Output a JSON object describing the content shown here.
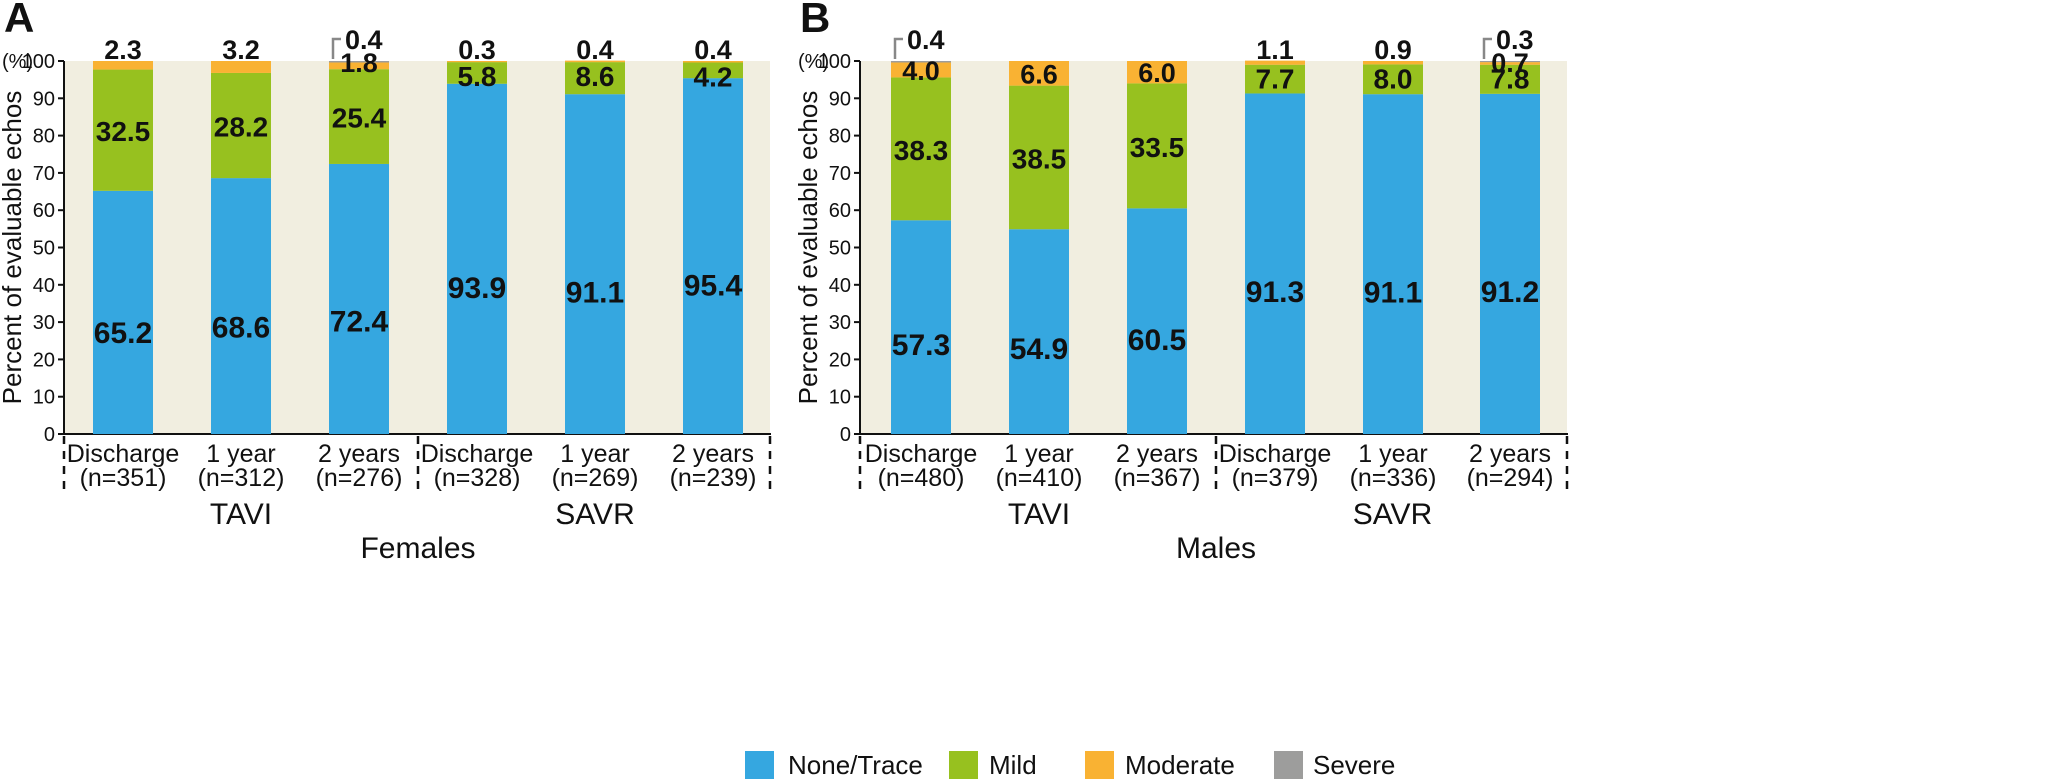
{
  "legend": [
    {
      "name": "None/Trace",
      "color": "#35a7e0"
    },
    {
      "name": "Mild",
      "color": "#97c11f"
    },
    {
      "name": "Moderate",
      "color": "#f9b233"
    },
    {
      "name": "Severe",
      "color": "#9d9d9c"
    }
  ],
  "plot_bg": "#f1eee0",
  "chart_data": [
    {
      "type": "bar",
      "stacked": true,
      "panel": "A",
      "ylabel": "Percent of evaluable echos",
      "y_unit": "(%)",
      "ylim": [
        0,
        100
      ],
      "yticks": [
        0,
        10,
        20,
        30,
        40,
        50,
        60,
        70,
        80,
        90,
        100
      ],
      "title": "Females",
      "groups": [
        {
          "name": "TAVI",
          "count": 3
        },
        {
          "name": "SAVR",
          "count": 3
        }
      ],
      "categories": [
        {
          "line1": "Discharge",
          "line2": "(n=351)"
        },
        {
          "line1": "1 year",
          "line2": "(n=312)"
        },
        {
          "line1": "2 years",
          "line2": "(n=276)"
        },
        {
          "line1": "Discharge",
          "line2": "(n=328)"
        },
        {
          "line1": "1 year",
          "line2": "(n=269)"
        },
        {
          "line1": "2 years",
          "line2": "(n=239)"
        }
      ],
      "series": [
        {
          "name": "None/Trace",
          "values": [
            65.2,
            68.6,
            72.4,
            93.9,
            91.1,
            95.4
          ],
          "labels": [
            "65.2",
            "68.6",
            "72.4",
            "93.9",
            "91.1",
            "95.4"
          ]
        },
        {
          "name": "Mild",
          "values": [
            32.5,
            28.2,
            25.4,
            5.8,
            8.6,
            4.2
          ],
          "labels": [
            "32.5",
            "28.2",
            "25.4",
            "5.8",
            "8.6",
            "4.2"
          ]
        },
        {
          "name": "Moderate",
          "values": [
            2.3,
            3.2,
            1.8,
            0.3,
            0.4,
            0.4
          ],
          "labels": [
            "2.3",
            "3.2",
            "1.8",
            "0.3",
            "0.4",
            "0.4"
          ]
        },
        {
          "name": "Severe",
          "values": [
            0,
            0,
            0.4,
            0,
            0,
            0
          ],
          "labels": [
            "",
            "",
            "0.4",
            "",
            "",
            ""
          ]
        }
      ]
    },
    {
      "type": "bar",
      "stacked": true,
      "panel": "B",
      "ylabel": "Percent of evaluable echos",
      "y_unit": "(%)",
      "ylim": [
        0,
        100
      ],
      "yticks": [
        0,
        10,
        20,
        30,
        40,
        50,
        60,
        70,
        80,
        90,
        100
      ],
      "title": "Males",
      "groups": [
        {
          "name": "TAVI",
          "count": 3
        },
        {
          "name": "SAVR",
          "count": 3
        }
      ],
      "categories": [
        {
          "line1": "Discharge",
          "line2": "(n=480)"
        },
        {
          "line1": "1 year",
          "line2": "(n=410)"
        },
        {
          "line1": "2 years",
          "line2": "(n=367)"
        },
        {
          "line1": "Discharge",
          "line2": "(n=379)"
        },
        {
          "line1": "1 year",
          "line2": "(n=336)"
        },
        {
          "line1": "2 years",
          "line2": "(n=294)"
        }
      ],
      "series": [
        {
          "name": "None/Trace",
          "values": [
            57.3,
            54.9,
            60.5,
            91.3,
            91.1,
            91.2
          ],
          "labels": [
            "57.3",
            "54.9",
            "60.5",
            "91.3",
            "91.1",
            "91.2"
          ]
        },
        {
          "name": "Mild",
          "values": [
            38.3,
            38.5,
            33.5,
            7.7,
            8.0,
            7.8
          ],
          "labels": [
            "38.3",
            "38.5",
            "33.5",
            "7.7",
            "8.0",
            "7.8"
          ]
        },
        {
          "name": "Moderate",
          "values": [
            4.0,
            6.6,
            6.0,
            1.1,
            0.9,
            0.7
          ],
          "labels": [
            "4.0",
            "6.6",
            "6.0",
            "1.1",
            "0.9",
            "0.7"
          ]
        },
        {
          "name": "Severe",
          "values": [
            0.4,
            0,
            0,
            0,
            0,
            0.3
          ],
          "labels": [
            "0.4",
            "",
            "",
            "",
            "",
            "0.3"
          ]
        }
      ]
    }
  ]
}
